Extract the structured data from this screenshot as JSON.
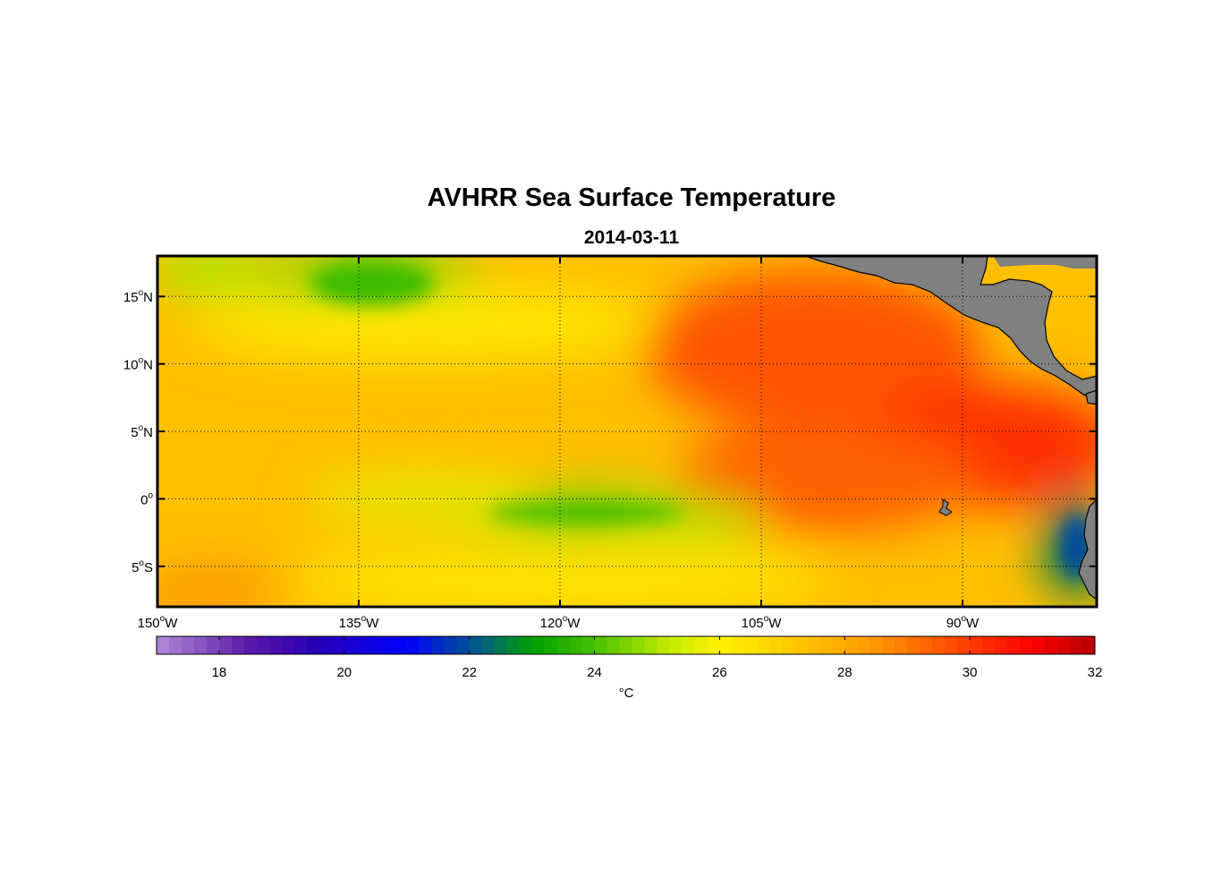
{
  "title": "AVHRR Sea Surface Temperature",
  "subtitle": "2014-03-11",
  "map": {
    "extent": {
      "lon": [
        -150,
        -80
      ],
      "lat": [
        -8,
        18
      ]
    },
    "lon_ticks": [
      {
        "lon": -150,
        "label": "150",
        "hemi": "W"
      },
      {
        "lon": -135,
        "label": "135",
        "hemi": "W"
      },
      {
        "lon": -120,
        "label": "120",
        "hemi": "W"
      },
      {
        "lon": -105,
        "label": "105",
        "hemi": "W"
      },
      {
        "lon": -90,
        "label": "90",
        "hemi": "W"
      }
    ],
    "lat_ticks": [
      {
        "lat": 15,
        "label": "15",
        "hemi": "N"
      },
      {
        "lat": 10,
        "label": "10",
        "hemi": "N"
      },
      {
        "lat": 5,
        "label": "5",
        "hemi": "N"
      },
      {
        "lat": 0,
        "label": "0",
        "hemi": ""
      },
      {
        "lat": -5,
        "label": "5",
        "hemi": "S"
      }
    ],
    "grid": "dotted",
    "land_color": "#808080"
  },
  "colorbar": {
    "range": [
      17,
      32
    ],
    "ticks": [
      18,
      20,
      22,
      24,
      26,
      28,
      30,
      32
    ],
    "unit": "°C",
    "stops": [
      {
        "value": 17.0,
        "color": "#b08ad6"
      },
      {
        "value": 18.5,
        "color": "#5a17a8"
      },
      {
        "value": 19.5,
        "color": "#2a00b4"
      },
      {
        "value": 21.0,
        "color": "#0000ff"
      },
      {
        "value": 22.2,
        "color": "#006080"
      },
      {
        "value": 23.0,
        "color": "#00a000"
      },
      {
        "value": 24.0,
        "color": "#46c000"
      },
      {
        "value": 25.2,
        "color": "#c4ec00"
      },
      {
        "value": 26.0,
        "color": "#fff200"
      },
      {
        "value": 27.2,
        "color": "#ffc800"
      },
      {
        "value": 28.5,
        "color": "#ff9600"
      },
      {
        "value": 30.0,
        "color": "#ff3c00"
      },
      {
        "value": 31.0,
        "color": "#ff0000"
      },
      {
        "value": 32.0,
        "color": "#b40000"
      }
    ]
  },
  "sst_features": [
    {
      "name": "background",
      "temp": 27.4
    },
    {
      "name": "warm-pool-northeast",
      "lon": -101,
      "lat": 11,
      "temp": 29.6
    },
    {
      "name": "warm-pool-east",
      "lon": -88,
      "lat": 4,
      "temp": 30.2
    },
    {
      "name": "warm-south-east",
      "lon": -100,
      "lat": 1.5,
      "temp": 29.4
    },
    {
      "name": "cool-northwest",
      "lon": -134,
      "lat": 16,
      "temp": 24.5
    },
    {
      "name": "cool-north-west-edge",
      "lon": -146,
      "lat": 17,
      "temp": 25.0
    },
    {
      "name": "yellow-band-north",
      "lon": -130,
      "lat": 13,
      "temp": 26.3
    },
    {
      "name": "equatorial-cold-tongue",
      "lon": -118,
      "lat": -1,
      "temp": 24.6
    },
    {
      "name": "cold-tongue-east",
      "lon": -110,
      "lat": -1.5,
      "temp": 25.0
    },
    {
      "name": "cold-tongue-west",
      "lon": -130,
      "lat": 0,
      "temp": 25.6
    },
    {
      "name": "yellow-south",
      "lon": -120,
      "lat": -6,
      "temp": 26.4
    },
    {
      "name": "peru-upwelling",
      "lon": -81.5,
      "lat": -3.5,
      "temp": 22.5
    },
    {
      "name": "warm-southwest-corner",
      "lon": -146,
      "lat": -7,
      "temp": 28.5
    }
  ]
}
